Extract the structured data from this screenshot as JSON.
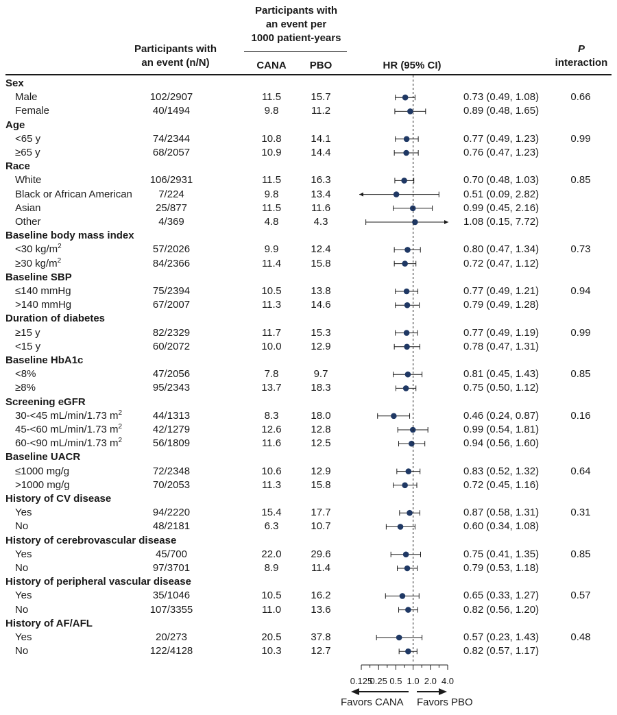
{
  "chart_data": {
    "type": "forest",
    "headers": {
      "events": [
        "Participants with",
        "an event (n/N)"
      ],
      "rate_group": [
        "Participants with",
        "an event per",
        "1000 patient-years"
      ],
      "cana": "CANA",
      "pbo": "PBO",
      "hr": "HR (95% CI)",
      "p_italic": "P",
      "p_rest": "interaction"
    },
    "axis": {
      "scale": "log2",
      "ticks": [
        "0.125",
        "0.25",
        "0.5",
        "1.0",
        "2.0",
        "4.0"
      ],
      "tick_values": [
        0.125,
        0.25,
        0.5,
        1.0,
        2.0,
        4.0
      ],
      "reference": 1.0,
      "favors_left": "Favors CANA",
      "favors_right": "Favors PBO"
    },
    "rows": [
      {
        "kind": "cat",
        "label": "Sex"
      },
      {
        "kind": "item",
        "label": "Male",
        "n": "102/2907",
        "cana": "11.5",
        "pbo": "15.7",
        "hr": 0.73,
        "lo": 0.49,
        "hi": 1.08,
        "ci": "0.73 (0.49, 1.08)",
        "p": "0.66"
      },
      {
        "kind": "item",
        "label": "Female",
        "n": "40/1494",
        "cana": "9.8",
        "pbo": "11.2",
        "hr": 0.89,
        "lo": 0.48,
        "hi": 1.65,
        "ci": "0.89 (0.48, 1.65)",
        "p": ""
      },
      {
        "kind": "cat",
        "label": "Age"
      },
      {
        "kind": "item",
        "label": "<65 y",
        "n": "74/2344",
        "cana": "10.8",
        "pbo": "14.1",
        "hr": 0.77,
        "lo": 0.49,
        "hi": 1.23,
        "ci": "0.77 (0.49, 1.23)",
        "p": "0.99"
      },
      {
        "kind": "item",
        "label": "≥65 y",
        "n": "68/2057",
        "cana": "10.9",
        "pbo": "14.4",
        "hr": 0.76,
        "lo": 0.47,
        "hi": 1.23,
        "ci": "0.76 (0.47, 1.23)",
        "p": ""
      },
      {
        "kind": "cat",
        "label": "Race"
      },
      {
        "kind": "item",
        "label": "White",
        "n": "106/2931",
        "cana": "11.5",
        "pbo": "16.3",
        "hr": 0.7,
        "lo": 0.48,
        "hi": 1.03,
        "ci": "0.70 (0.48, 1.03)",
        "p": "0.85"
      },
      {
        "kind": "item",
        "label": "Black or African American",
        "n": "7/224",
        "cana": "9.8",
        "pbo": "13.4",
        "hr": 0.51,
        "lo": 0.09,
        "hi": 2.82,
        "ci": "0.51 (0.09, 2.82)",
        "p": "",
        "arrow_left": true
      },
      {
        "kind": "item",
        "label": "Asian",
        "n": "25/877",
        "cana": "11.5",
        "pbo": "11.6",
        "hr": 0.99,
        "lo": 0.45,
        "hi": 2.16,
        "ci": "0.99 (0.45, 2.16)",
        "p": ""
      },
      {
        "kind": "item",
        "label": "Other",
        "n": "4/369",
        "cana": "4.8",
        "pbo": "4.3",
        "hr": 1.08,
        "lo": 0.15,
        "hi": 7.72,
        "ci": "1.08 (0.15, 7.72)",
        "p": "",
        "arrow_right": true
      },
      {
        "kind": "cat",
        "label": "Baseline body mass index"
      },
      {
        "kind": "item",
        "label": "<30 kg/m",
        "sup": "2",
        "n": "57/2026",
        "cana": "9.9",
        "pbo": "12.4",
        "hr": 0.8,
        "lo": 0.47,
        "hi": 1.34,
        "ci": "0.80 (0.47, 1.34)",
        "p": "0.73"
      },
      {
        "kind": "item",
        "label": "≥30 kg/m",
        "sup": "2",
        "n": "84/2366",
        "cana": "11.4",
        "pbo": "15.8",
        "hr": 0.72,
        "lo": 0.47,
        "hi": 1.12,
        "ci": "0.72 (0.47, 1.12)",
        "p": ""
      },
      {
        "kind": "cat",
        "label": "Baseline SBP"
      },
      {
        "kind": "item",
        "label": "≤140 mmHg",
        "n": "75/2394",
        "cana": "10.5",
        "pbo": "13.8",
        "hr": 0.77,
        "lo": 0.49,
        "hi": 1.21,
        "ci": "0.77 (0.49, 1.21)",
        "p": "0.94"
      },
      {
        "kind": "item",
        "label": ">140 mmHg",
        "n": "67/2007",
        "cana": "11.3",
        "pbo": "14.6",
        "hr": 0.79,
        "lo": 0.49,
        "hi": 1.28,
        "ci": "0.79 (0.49, 1.28)",
        "p": ""
      },
      {
        "kind": "cat",
        "label": "Duration of diabetes"
      },
      {
        "kind": "item",
        "label": "≥15 y",
        "n": "82/2329",
        "cana": "11.7",
        "pbo": "15.3",
        "hr": 0.77,
        "lo": 0.49,
        "hi": 1.19,
        "ci": "0.77 (0.49, 1.19)",
        "p": "0.99"
      },
      {
        "kind": "item",
        "label": "<15 y",
        "n": "60/2072",
        "cana": "10.0",
        "pbo": "12.9",
        "hr": 0.78,
        "lo": 0.47,
        "hi": 1.31,
        "ci": "0.78 (0.47, 1.31)",
        "p": ""
      },
      {
        "kind": "cat",
        "label": "Baseline HbA1c"
      },
      {
        "kind": "item",
        "label": "<8%",
        "n": "47/2056",
        "cana": "7.8",
        "pbo": "9.7",
        "hr": 0.81,
        "lo": 0.45,
        "hi": 1.43,
        "ci": "0.81 (0.45, 1.43)",
        "p": "0.85"
      },
      {
        "kind": "item",
        "label": "≥8%",
        "n": "95/2343",
        "cana": "13.7",
        "pbo": "18.3",
        "hr": 0.75,
        "lo": 0.5,
        "hi": 1.12,
        "ci": "0.75 (0.50, 1.12)",
        "p": ""
      },
      {
        "kind": "cat",
        "label": "Screening eGFR"
      },
      {
        "kind": "item",
        "label": "30-<45 mL/min/1.73 m",
        "sup": "2",
        "n": "44/1313",
        "cana": "8.3",
        "pbo": "18.0",
        "hr": 0.46,
        "lo": 0.24,
        "hi": 0.87,
        "ci": "0.46 (0.24, 0.87)",
        "p": "0.16"
      },
      {
        "kind": "item",
        "label": "45-<60 mL/min/1.73 m",
        "sup": "2",
        "n": "42/1279",
        "cana": "12.6",
        "pbo": "12.8",
        "hr": 0.99,
        "lo": 0.54,
        "hi": 1.81,
        "ci": "0.99 (0.54, 1.81)",
        "p": ""
      },
      {
        "kind": "item",
        "label": "60-<90 mL/min/1.73 m",
        "sup": "2",
        "n": "56/1809",
        "cana": "11.6",
        "pbo": "12.5",
        "hr": 0.94,
        "lo": 0.56,
        "hi": 1.6,
        "ci": "0.94 (0.56, 1.60)",
        "p": ""
      },
      {
        "kind": "cat",
        "label": "Baseline UACR"
      },
      {
        "kind": "item",
        "label": "≤1000 mg/g",
        "n": "72/2348",
        "cana": "10.6",
        "pbo": "12.9",
        "hr": 0.83,
        "lo": 0.52,
        "hi": 1.32,
        "ci": "0.83 (0.52, 1.32)",
        "p": "0.64"
      },
      {
        "kind": "item",
        "label": ">1000 mg/g",
        "n": "70/2053",
        "cana": "11.3",
        "pbo": "15.8",
        "hr": 0.72,
        "lo": 0.45,
        "hi": 1.16,
        "ci": "0.72 (0.45, 1.16)",
        "p": ""
      },
      {
        "kind": "cat",
        "label": "History of CV disease"
      },
      {
        "kind": "item",
        "label": "Yes",
        "n": "94/2220",
        "cana": "15.4",
        "pbo": "17.7",
        "hr": 0.87,
        "lo": 0.58,
        "hi": 1.31,
        "ci": "0.87 (0.58, 1.31)",
        "p": "0.31"
      },
      {
        "kind": "item",
        "label": "No",
        "n": "48/2181",
        "cana": "6.3",
        "pbo": "10.7",
        "hr": 0.6,
        "lo": 0.34,
        "hi": 1.08,
        "ci": "0.60 (0.34, 1.08)",
        "p": ""
      },
      {
        "kind": "cat",
        "label": "History of cerebrovascular disease"
      },
      {
        "kind": "item",
        "label": "Yes",
        "n": "45/700",
        "cana": "22.0",
        "pbo": "29.6",
        "hr": 0.75,
        "lo": 0.41,
        "hi": 1.35,
        "ci": "0.75 (0.41, 1.35)",
        "p": "0.85"
      },
      {
        "kind": "item",
        "label": "No",
        "n": "97/3701",
        "cana": "8.9",
        "pbo": "11.4",
        "hr": 0.79,
        "lo": 0.53,
        "hi": 1.18,
        "ci": "0.79 (0.53, 1.18)",
        "p": ""
      },
      {
        "kind": "cat",
        "label": "History of peripheral vascular disease"
      },
      {
        "kind": "item",
        "label": "Yes",
        "n": "35/1046",
        "cana": "10.5",
        "pbo": "16.2",
        "hr": 0.65,
        "lo": 0.33,
        "hi": 1.27,
        "ci": "0.65 (0.33, 1.27)",
        "p": "0.57"
      },
      {
        "kind": "item",
        "label": "No",
        "n": "107/3355",
        "cana": "11.0",
        "pbo": "13.6",
        "hr": 0.82,
        "lo": 0.56,
        "hi": 1.2,
        "ci": "0.82 (0.56, 1.20)",
        "p": ""
      },
      {
        "kind": "cat",
        "label": "History of AF/AFL"
      },
      {
        "kind": "item",
        "label": "Yes",
        "n": "20/273",
        "cana": "20.5",
        "pbo": "37.8",
        "hr": 0.57,
        "lo": 0.23,
        "hi": 1.43,
        "ci": "0.57 (0.23, 1.43)",
        "p": "0.48"
      },
      {
        "kind": "item",
        "label": "No",
        "n": "122/4128",
        "cana": "10.3",
        "pbo": "12.7",
        "hr": 0.82,
        "lo": 0.57,
        "hi": 1.17,
        "ci": "0.82 (0.57, 1.17)",
        "p": ""
      }
    ],
    "colors": {
      "marker": "#1f3864",
      "line": "#1a1a1a"
    }
  }
}
